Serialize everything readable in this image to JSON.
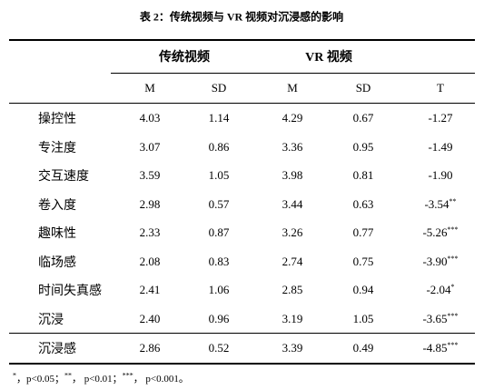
{
  "title": "表 2：传统视频与 VR 视频对沉浸感的影响",
  "table": {
    "groups": [
      "传统视频",
      "VR 视频"
    ],
    "columns": [
      "M",
      "SD",
      "M",
      "SD",
      "T"
    ],
    "rows": [
      {
        "label": "操控性",
        "cells": [
          "4.03",
          "1.14",
          "4.29",
          "0.67",
          "-1.27"
        ]
      },
      {
        "label": "专注度",
        "cells": [
          "3.07",
          "0.86",
          "3.36",
          "0.95",
          "-1.49"
        ]
      },
      {
        "label": "交互速度",
        "cells": [
          "3.59",
          "1.05",
          "3.98",
          "0.81",
          "-1.90"
        ]
      },
      {
        "label": "卷入度",
        "cells": [
          "2.98",
          "0.57",
          "3.44",
          "0.63",
          "-3.54"
        ],
        "sig": "**"
      },
      {
        "label": "趣味性",
        "cells": [
          "2.33",
          "0.87",
          "3.26",
          "0.77",
          "-5.26"
        ],
        "sig": "***"
      },
      {
        "label": "临场感",
        "cells": [
          "2.08",
          "0.83",
          "2.74",
          "0.75",
          "-3.90"
        ],
        "sig": "***"
      },
      {
        "label": "时间失真感",
        "cells": [
          "2.41",
          "1.06",
          "2.85",
          "0.94",
          "-2.04"
        ],
        "sig": "*"
      },
      {
        "label": "沉浸",
        "cells": [
          "2.40",
          "0.96",
          "3.19",
          "1.05",
          "-3.65"
        ],
        "sig": "***"
      },
      {
        "label": "沉浸感",
        "cells": [
          "2.86",
          "0.52",
          "3.39",
          "0.49",
          "-4.85"
        ],
        "sig": "***"
      }
    ]
  },
  "footnote": [
    {
      "sup": "*",
      "text": "，p<0.05；"
    },
    {
      "sup": "**",
      "text": "，  p<0.01；"
    },
    {
      "sup": "***",
      "text": "，  p<0.001。"
    }
  ]
}
